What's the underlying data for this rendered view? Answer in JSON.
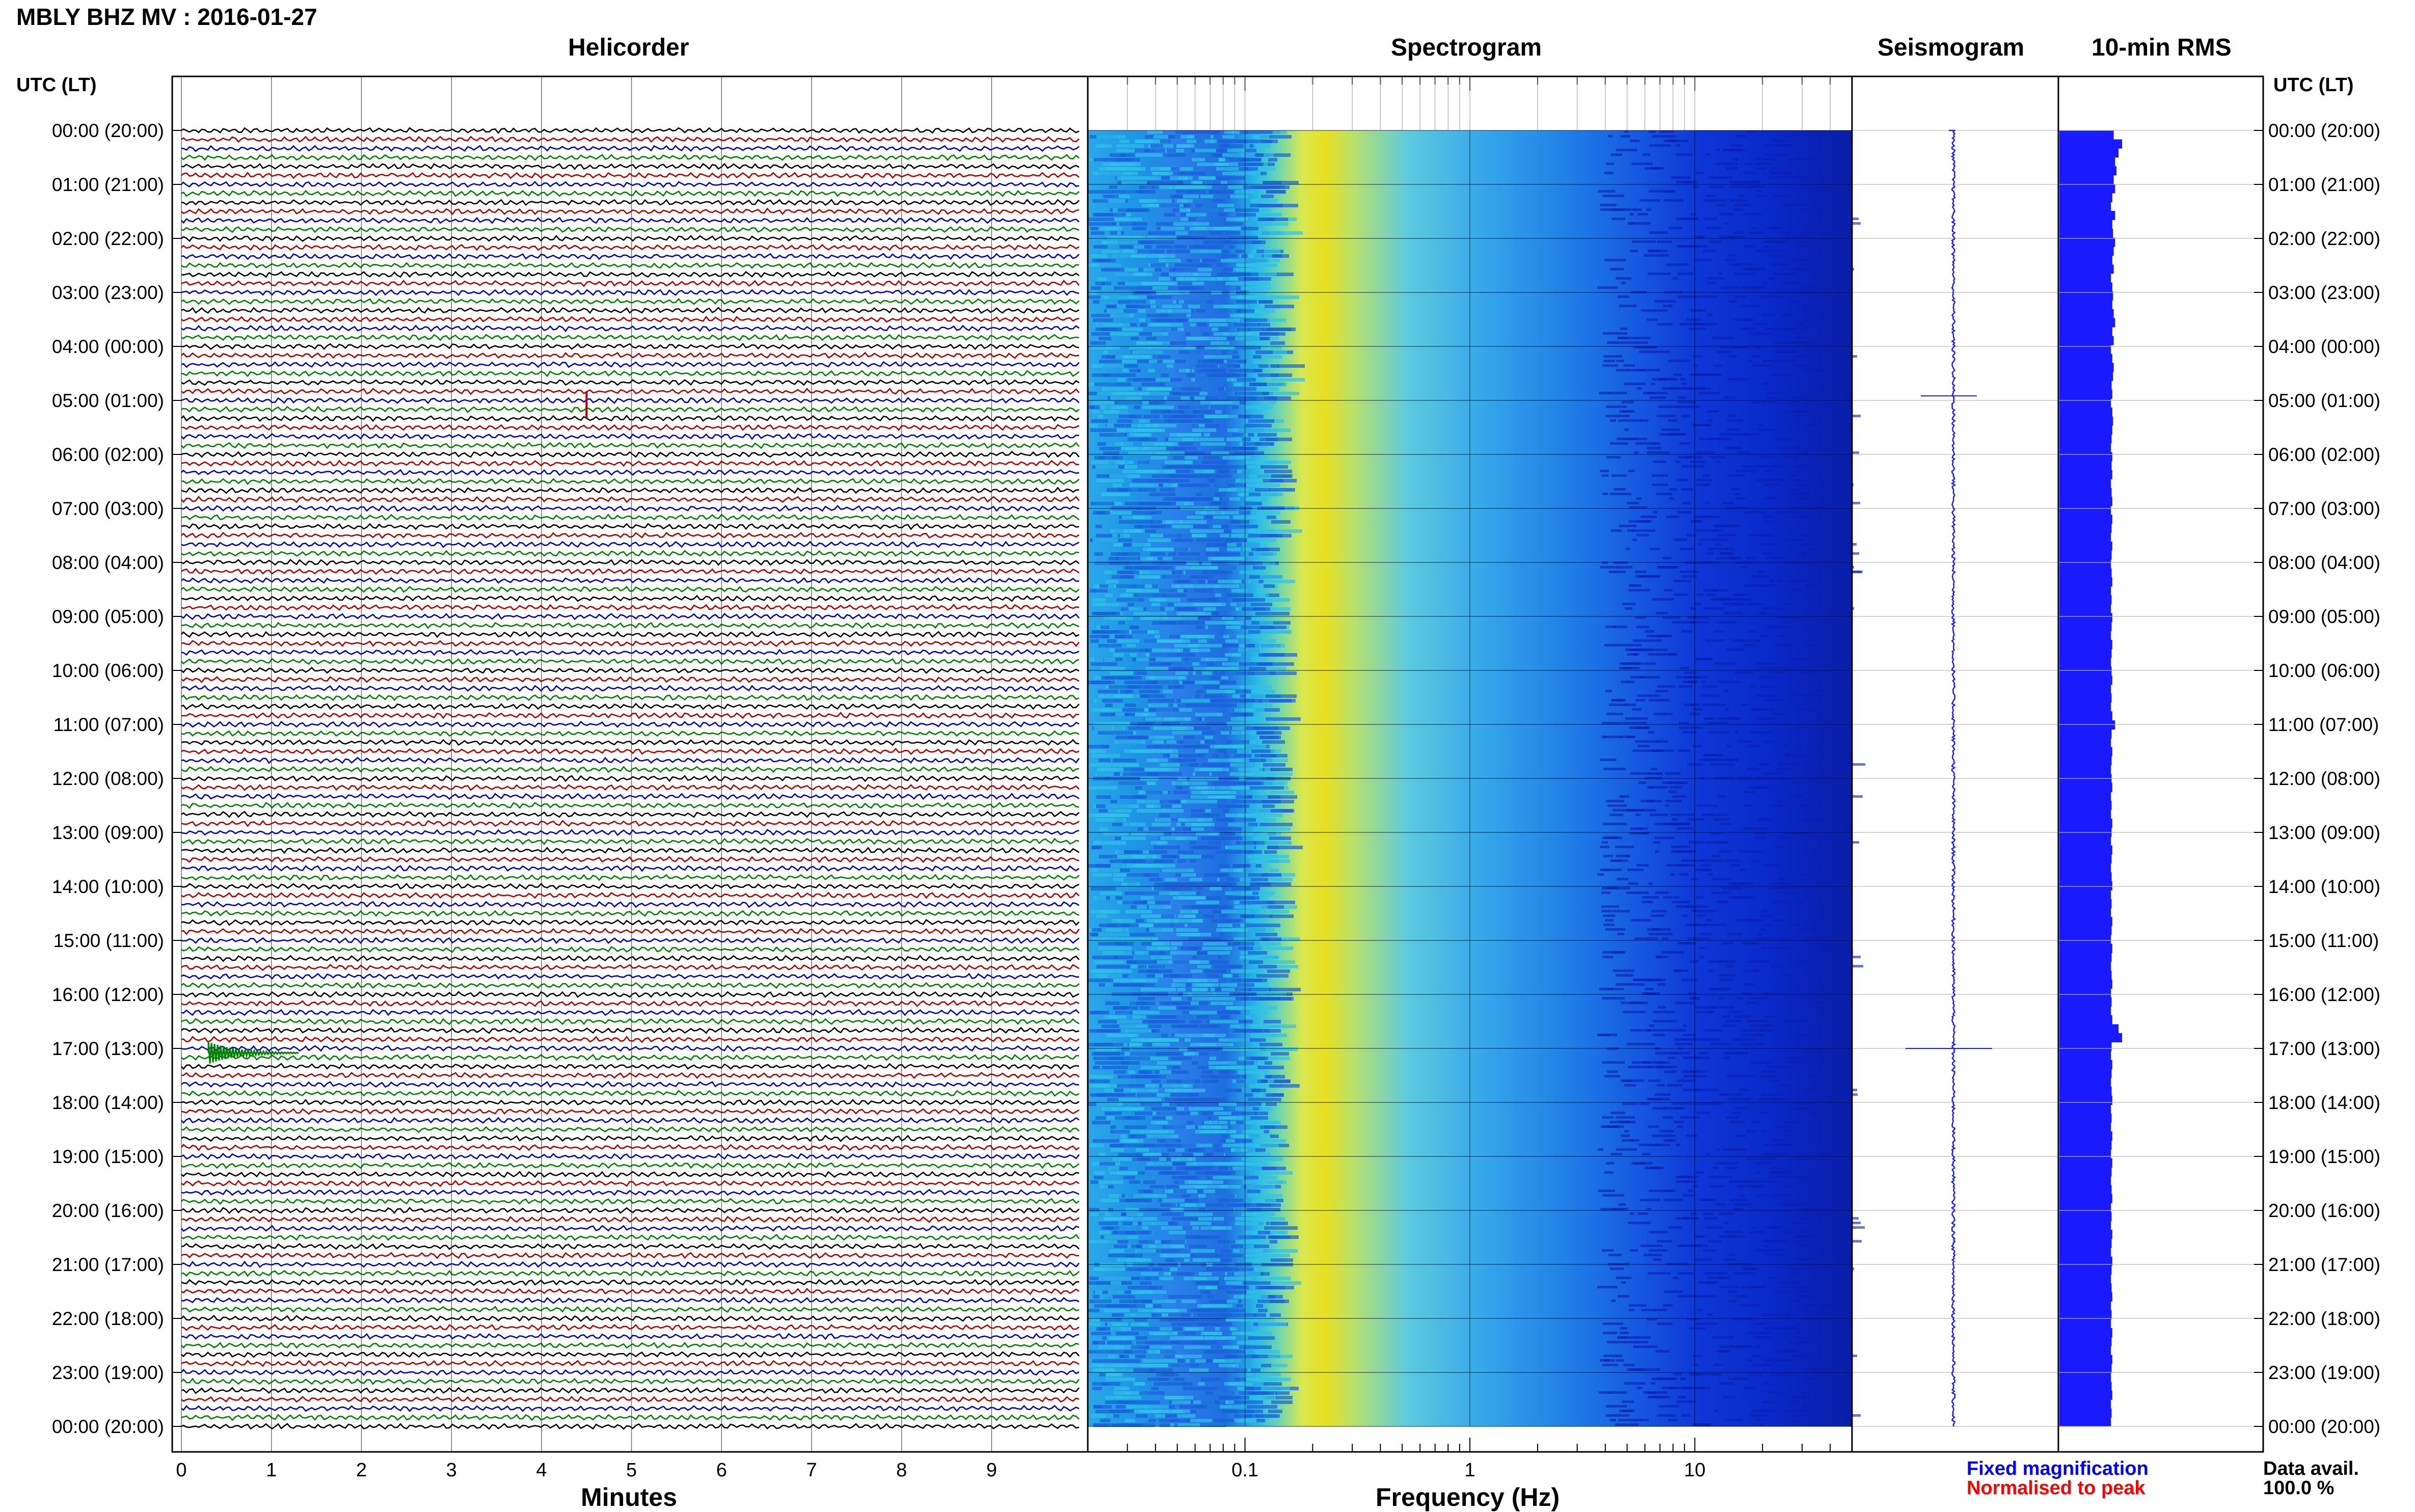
{
  "header": {
    "title": "MBLY BHZ MV : 2016-01-27",
    "utc_label_left": "UTC (LT)",
    "utc_label_right": "UTC (LT)"
  },
  "panels": {
    "helicorder": "Helicorder",
    "spectrogram": "Spectrogram",
    "seismogram": "Seismogram",
    "rms": "10-min RMS"
  },
  "axes": {
    "minutes_label": "Minutes",
    "frequency_label": "Frequency (Hz)",
    "minute_ticks": [
      "0",
      "1",
      "2",
      "3",
      "4",
      "5",
      "6",
      "7",
      "8",
      "9"
    ],
    "freq_ticks": [
      "0.1",
      "1",
      "10"
    ]
  },
  "hours": [
    "00:00 (20:00)",
    "01:00 (21:00)",
    "02:00 (22:00)",
    "03:00 (23:00)",
    "04:00 (00:00)",
    "05:00 (01:00)",
    "06:00 (02:00)",
    "07:00 (03:00)",
    "08:00 (04:00)",
    "09:00 (05:00)",
    "10:00 (06:00)",
    "11:00 (07:00)",
    "12:00 (08:00)",
    "13:00 (09:00)",
    "14:00 (10:00)",
    "15:00 (11:00)",
    "16:00 (12:00)",
    "17:00 (13:00)",
    "18:00 (14:00)",
    "19:00 (15:00)",
    "20:00 (16:00)",
    "21:00 (17:00)",
    "22:00 (18:00)",
    "23:00 (19:00)",
    "00:00 (20:00)"
  ],
  "legend": {
    "fixed": "Fixed magnification",
    "normalised": "Normalised to peak",
    "data_avail": "Data avail.",
    "data_avail_value": "100.0 %"
  },
  "colors": {
    "trace_cycle": [
      "#000000",
      "#b00000",
      "#0000c0",
      "#008000"
    ],
    "seismogram": "#1a1aff",
    "rms": "#1a1aff",
    "fixed_legend": "#0000ff",
    "normalised_legend": "#ff0000"
  },
  "chart_data": [
    {
      "type": "line",
      "title": "Helicorder",
      "xlabel": "Minutes",
      "xlim": [
        0,
        10
      ],
      "rows": 145,
      "events": [
        {
          "time": "04:55",
          "minute": 4.5,
          "note": "spike"
        },
        {
          "time": "17:00",
          "minute": 0.3,
          "note": "burst"
        }
      ]
    },
    {
      "type": "heatmap",
      "title": "Spectrogram",
      "xlabel": "Frequency (Hz)",
      "xscale": "log",
      "xlim": [
        0.02,
        50
      ],
      "peak_band_hz": [
        0.15,
        0.35
      ],
      "colormap": "jet"
    },
    {
      "type": "line",
      "title": "Seismogram",
      "events": [
        {
          "time": "04:55"
        },
        {
          "time": "17:00"
        }
      ]
    },
    {
      "type": "bar",
      "title": "10-min RMS",
      "orientation": "horizontal",
      "values_relative": [
        0.78,
        0.9,
        0.85,
        0.8,
        0.82,
        0.78,
        0.8,
        0.76,
        0.74,
        0.8,
        0.76,
        0.77,
        0.8,
        0.78,
        0.76,
        0.78,
        0.74,
        0.76,
        0.77,
        0.76,
        0.78,
        0.8,
        0.76,
        0.78,
        0.74,
        0.76,
        0.78,
        0.77,
        0.75,
        0.76,
        0.74,
        0.76,
        0.77,
        0.76,
        0.75,
        0.74,
        0.76,
        0.75,
        0.76,
        0.74,
        0.75,
        0.76,
        0.74,
        0.76,
        0.75,
        0.74,
        0.76,
        0.75,
        0.74,
        0.75,
        0.76,
        0.74,
        0.75,
        0.74,
        0.76,
        0.75,
        0.74,
        0.76,
        0.75,
        0.74,
        0.75,
        0.76,
        0.74,
        0.75,
        0.74,
        0.76,
        0.8,
        0.75,
        0.74,
        0.76,
        0.75,
        0.74,
        0.75,
        0.76,
        0.74,
        0.75,
        0.74,
        0.76,
        0.75,
        0.74,
        0.76,
        0.75,
        0.74,
        0.75,
        0.76,
        0.74,
        0.75,
        0.74,
        0.76,
        0.75,
        0.74,
        0.76,
        0.75,
        0.74,
        0.75,
        0.76,
        0.74,
        0.75,
        0.74,
        0.76,
        0.85,
        0.9,
        0.75,
        0.74,
        0.76,
        0.75,
        0.74,
        0.75,
        0.76,
        0.74,
        0.75,
        0.74,
        0.76,
        0.75,
        0.74,
        0.76,
        0.75,
        0.74,
        0.75,
        0.76,
        0.74,
        0.75,
        0.74,
        0.76,
        0.75,
        0.74,
        0.76,
        0.75,
        0.74,
        0.75,
        0.76,
        0.74,
        0.75,
        0.74,
        0.76,
        0.75,
        0.74,
        0.76,
        0.75,
        0.74,
        0.75,
        0.76,
        0.74,
        0.75,
        0.74
      ]
    }
  ]
}
